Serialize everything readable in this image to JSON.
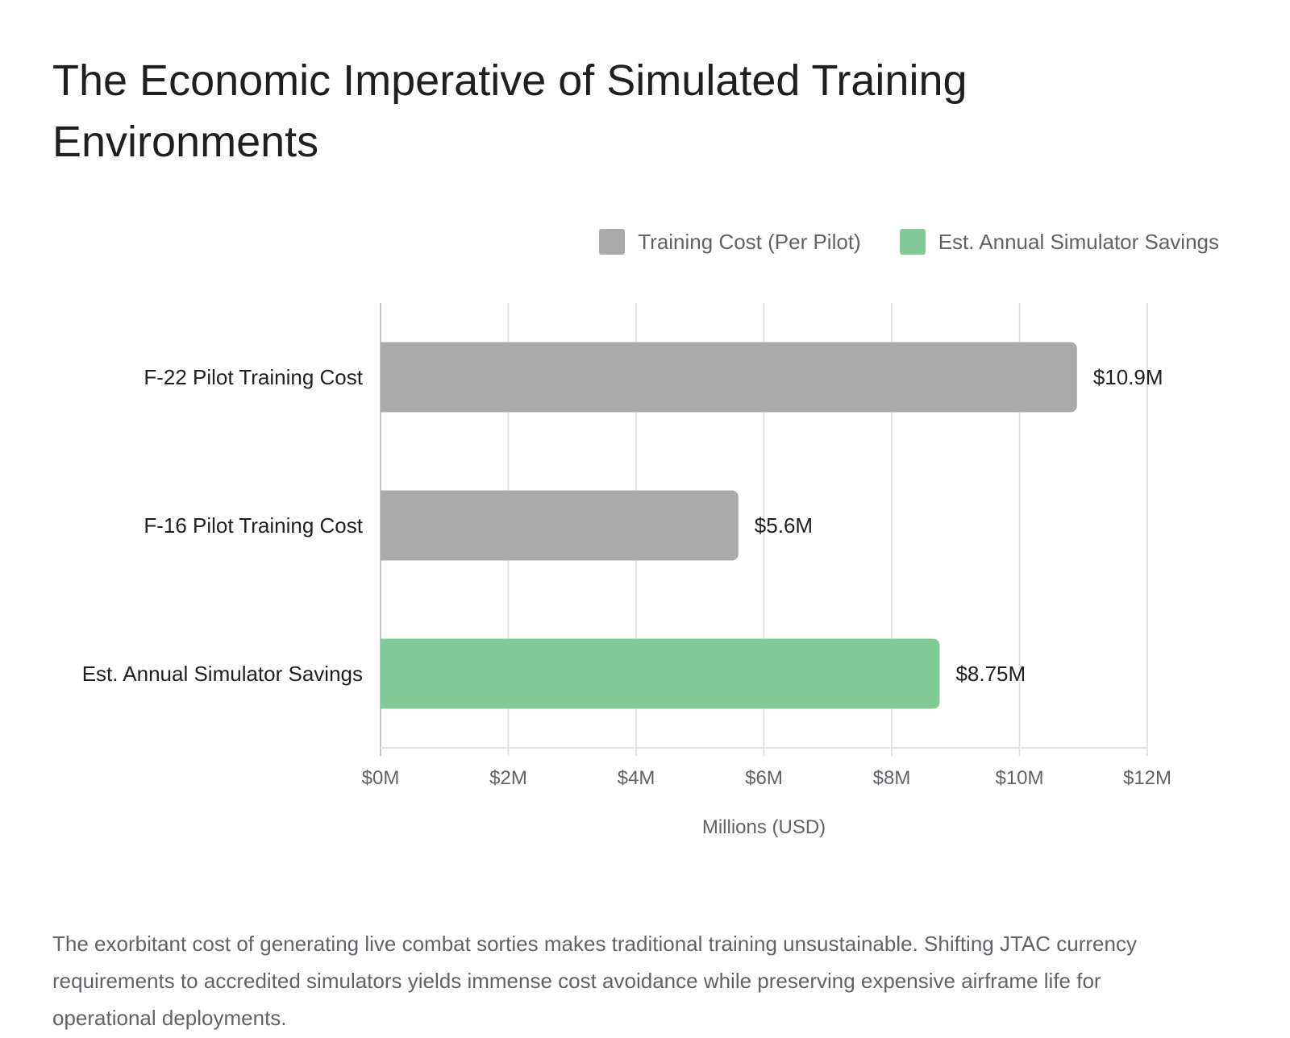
{
  "title": "The Economic Imperative of Simulated Training Environments",
  "description": "The exorbitant cost of generating live combat sorties makes traditional training unsustainable. Shifting JTAC currency requirements to accredited simulators yields immense cost avoidance while preserving expensive airframe life for operational deployments.",
  "chart_data": {
    "type": "bar",
    "orientation": "horizontal",
    "categories": [
      "F-22 Pilot Training Cost",
      "F-16 Pilot Training Cost",
      "Est. Annual Simulator Savings"
    ],
    "values": [
      10.9,
      5.6,
      8.75
    ],
    "value_labels": [
      "$10.9M",
      "$5.6M",
      "$8.75M"
    ],
    "bar_series": [
      "Training Cost (Per Pilot)",
      "Training Cost (Per Pilot)",
      "Est. Annual Simulator Savings"
    ],
    "legend": [
      {
        "name": "Training Cost (Per Pilot)",
        "color": "#aaaaaa"
      },
      {
        "name": "Est. Annual Simulator Savings",
        "color": "#81c995"
      }
    ],
    "legend_position": "top-right",
    "xlabel": "Millions (USD)",
    "xlim": [
      0,
      12
    ],
    "xticks": [
      0,
      2,
      4,
      6,
      8,
      10,
      12
    ],
    "xtick_labels": [
      "$0M",
      "$2M",
      "$4M",
      "$6M",
      "$8M",
      "$10M",
      "$12M"
    ],
    "grid": true
  }
}
